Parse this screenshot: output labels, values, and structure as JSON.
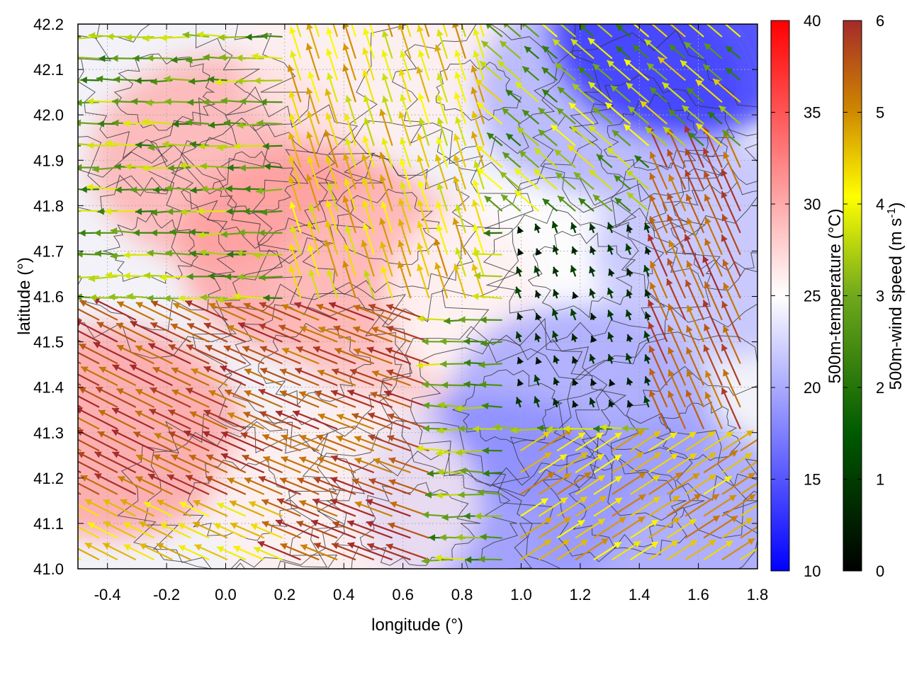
{
  "chart_data": {
    "type": "heatmap",
    "overlays": [
      "vector-field",
      "contour"
    ],
    "xlabel": "longitude (°)",
    "ylabel": "latitude (°)",
    "xlim": [
      -0.5,
      1.8
    ],
    "ylim": [
      41.0,
      42.2
    ],
    "x_ticks": [
      "-0.4",
      "-0.2",
      "0.0",
      "0.2",
      "0.4",
      "0.6",
      "0.8",
      "1.0",
      "1.2",
      "1.4",
      "1.6",
      "1.8"
    ],
    "y_ticks": [
      "41.0",
      "41.1",
      "41.2",
      "41.3",
      "41.4",
      "41.5",
      "41.6",
      "41.7",
      "41.8",
      "41.9",
      "42.0",
      "42.1",
      "42.2"
    ],
    "grid": true,
    "colorbars": [
      {
        "label": "500m-temperature (°C)",
        "range": [
          10,
          40
        ],
        "ticks": [
          "10",
          "15",
          "20",
          "25",
          "30",
          "35",
          "40"
        ],
        "colors": [
          "#0000ff",
          "#ffffff",
          "#ff0000"
        ]
      },
      {
        "label": "500m-wind speed (m s",
        "label_sup": "-1",
        "label_end": ")",
        "range": [
          0,
          6
        ],
        "ticks": [
          "0",
          "1",
          "2",
          "3",
          "4",
          "5",
          "6"
        ],
        "colors": [
          "#000000",
          "#006400",
          "#9acd32",
          "#ffff00",
          "#cd8500",
          "#a52a2a"
        ]
      }
    ],
    "temperature_field": {
      "description_values_degC": [
        {
          "lon": -0.4,
          "lat": 41.3,
          "temp": 31
        },
        {
          "lon": 0.0,
          "lat": 41.9,
          "temp": 30
        },
        {
          "lon": 0.3,
          "lat": 41.7,
          "temp": 31
        },
        {
          "lon": 0.6,
          "lat": 41.6,
          "temp": 29
        },
        {
          "lon": 0.5,
          "lat": 42.15,
          "temp": 26
        },
        {
          "lon": 1.3,
          "lat": 42.05,
          "temp": 20
        },
        {
          "lon": 1.55,
          "lat": 42.18,
          "temp": 12
        },
        {
          "lon": 1.0,
          "lat": 41.6,
          "temp": 25
        },
        {
          "lon": 1.2,
          "lat": 41.35,
          "temp": 19
        },
        {
          "lon": 0.9,
          "lat": 41.15,
          "temp": 18
        },
        {
          "lon": 1.5,
          "lat": 41.1,
          "temp": 19
        },
        {
          "lon": 1.7,
          "lat": 41.7,
          "temp": 21
        },
        {
          "lon": 0.4,
          "lat": 41.15,
          "temp": 26
        }
      ]
    },
    "wind_field_summary": [
      {
        "region": "southwest",
        "direction": "west-northwest",
        "speed_ms": 6
      },
      {
        "region": "southeast",
        "direction": "northeast",
        "speed_ms": 4.5
      },
      {
        "region": "north",
        "direction": "west",
        "speed_ms": 2.5
      },
      {
        "region": "center-east",
        "direction": "calm",
        "speed_ms": 0.3
      },
      {
        "region": "east",
        "direction": "north-northwest",
        "speed_ms": 5.5
      }
    ]
  }
}
